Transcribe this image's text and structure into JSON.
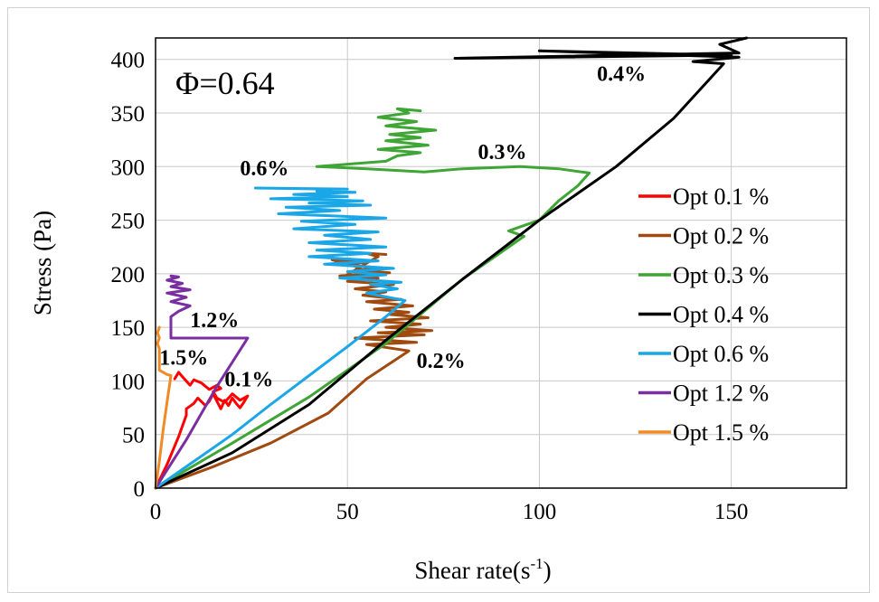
{
  "chart_data": {
    "type": "line",
    "title": "",
    "inset_label": "Φ=0.64",
    "xlabel": "Shear rate(s",
    "xlabel_sup": "-1",
    "xlabel_close": ")",
    "ylabel": "Stress (Pa)",
    "xlim": [
      0,
      180
    ],
    "ylim": [
      0,
      420
    ],
    "xticks": [
      0,
      50,
      100,
      150
    ],
    "yticks": [
      0,
      50,
      100,
      150,
      200,
      250,
      300,
      350,
      400
    ],
    "grid": true,
    "legend_position": "right",
    "series": [
      {
        "name": "Opt 0.1 %",
        "color": "#ff0000",
        "annotation": "0.1%",
        "x": [
          0,
          3,
          6,
          8,
          8,
          10,
          11,
          13,
          14,
          15,
          17,
          18,
          19,
          20,
          21,
          22,
          23,
          24,
          22,
          20,
          18,
          16,
          15,
          17,
          16,
          14,
          12,
          10,
          9,
          7,
          6,
          5
        ],
        "y": [
          0,
          22,
          48,
          68,
          74,
          79,
          84,
          77,
          81,
          88,
          74,
          82,
          77,
          84,
          79,
          75,
          80,
          86,
          82,
          88,
          80,
          84,
          90,
          93,
          96,
          92,
          98,
          101,
          96,
          104,
          108,
          102
        ]
      },
      {
        "name": "Opt 0.2 %",
        "color": "#a04a10",
        "annotation": "0.2%",
        "x": [
          0,
          15,
          30,
          45,
          55,
          66,
          55,
          68,
          52,
          70,
          58,
          72,
          60,
          69,
          56,
          71,
          61,
          66,
          57,
          67,
          55,
          64,
          54,
          60,
          52,
          62,
          50,
          58,
          48,
          61,
          53,
          57,
          50,
          55,
          46,
          52,
          56,
          49,
          56,
          58,
          55,
          60
        ],
        "y": [
          0,
          20,
          42,
          70,
          102,
          128,
          134,
          136,
          140,
          143,
          145,
          147,
          150,
          153,
          156,
          159,
          162,
          164,
          167,
          170,
          174,
          176,
          180,
          183,
          186,
          190,
          193,
          196,
          198,
          201,
          203,
          206,
          208,
          211,
          213,
          207,
          200,
          197,
          212,
          216,
          219,
          218
        ]
      },
      {
        "name": "Opt 0.3 %",
        "color": "#3fa535",
        "annotation": "0.3%",
        "x": [
          0,
          20,
          40,
          60,
          80,
          96,
          92,
          100,
          105,
          110,
          113,
          105,
          95,
          80,
          70,
          55,
          42,
          60,
          63,
          69,
          58,
          71,
          60,
          69,
          61,
          73,
          60,
          68,
          58,
          66,
          63,
          69
        ],
        "y": [
          0,
          42,
          85,
          135,
          195,
          235,
          240,
          250,
          268,
          282,
          294,
          298,
          300,
          298,
          295,
          298,
          300,
          305,
          310,
          313,
          316,
          320,
          324,
          327,
          330,
          334,
          338,
          342,
          346,
          350,
          354,
          352
        ]
      },
      {
        "name": "Opt 0.4 %",
        "color": "#000000",
        "annotation": "0.4%",
        "x": [
          0,
          20,
          40,
          60,
          80,
          100,
          120,
          135,
          148,
          140,
          152,
          100,
          150,
          78,
          152,
          147,
          154
        ],
        "y": [
          0,
          33,
          78,
          138,
          195,
          250,
          300,
          345,
          396,
          398,
          402,
          408,
          404,
          401,
          406,
          414,
          420
        ]
      },
      {
        "name": "Opt 0.6 %",
        "color": "#1aa7e8",
        "annotation": "0.6%",
        "x": [
          0,
          10,
          20,
          30,
          40,
          50,
          60,
          65,
          55,
          63,
          56,
          64,
          48,
          60,
          50,
          62,
          44,
          58,
          40,
          56,
          42,
          60,
          40,
          56,
          44,
          58,
          36,
          52,
          38,
          60,
          32,
          48,
          34,
          56,
          40,
          54,
          30,
          50,
          36,
          52,
          42,
          46,
          26,
          50
        ],
        "y": [
          0,
          25,
          50,
          78,
          105,
          132,
          160,
          175,
          182,
          186,
          190,
          192,
          196,
          199,
          202,
          205,
          209,
          212,
          216,
          219,
          222,
          225,
          229,
          232,
          236,
          239,
          242,
          246,
          249,
          252,
          256,
          259,
          262,
          264,
          266,
          268,
          270,
          272,
          274,
          276,
          277,
          279,
          280,
          279
        ]
      },
      {
        "name": "Opt 1.2 %",
        "color": "#7a2fa0",
        "annotation": "1.2%",
        "x": [
          0,
          8,
          16,
          24,
          22,
          14,
          8,
          4,
          4,
          6,
          9,
          4,
          8,
          3,
          9,
          4,
          7,
          3,
          6,
          4,
          5
        ],
        "y": [
          0,
          45,
          95,
          140,
          140,
          140,
          140,
          140,
          160,
          165,
          170,
          174,
          178,
          182,
          185,
          188,
          191,
          194,
          197,
          198,
          196
        ]
      },
      {
        "name": "Opt 1.5 %",
        "color": "#f08a24",
        "annotation": "1.5%",
        "x": [
          0,
          1,
          2,
          3,
          4,
          3,
          2,
          1,
          1,
          0.5,
          1,
          0.5,
          1
        ],
        "y": [
          0,
          25,
          55,
          80,
          105,
          106,
          108,
          110,
          130,
          135,
          140,
          145,
          150
        ]
      }
    ],
    "annotation_positions": [
      {
        "text": "0.1%",
        "x": 18,
        "y": 95
      },
      {
        "text": "0.2%",
        "x": 68,
        "y": 112
      },
      {
        "text": "0.3%",
        "x": 84,
        "y": 307
      },
      {
        "text": "0.4%",
        "x": 115,
        "y": 380
      },
      {
        "text": "0.6%",
        "x": 22,
        "y": 292
      },
      {
        "text": "1.2%",
        "x": 9,
        "y": 150
      },
      {
        "text": "1.5%",
        "x": 1,
        "y": 115
      }
    ]
  }
}
